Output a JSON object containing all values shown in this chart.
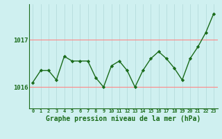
{
  "x": [
    0,
    1,
    2,
    3,
    4,
    5,
    6,
    7,
    8,
    9,
    10,
    11,
    12,
    13,
    14,
    15,
    16,
    17,
    18,
    19,
    20,
    21,
    22,
    23
  ],
  "y": [
    1016.1,
    1016.35,
    1016.35,
    1016.15,
    1016.65,
    1016.55,
    1016.55,
    1016.55,
    1016.2,
    1016.0,
    1016.45,
    1016.55,
    1016.35,
    1016.0,
    1016.35,
    1016.6,
    1016.75,
    1016.6,
    1016.4,
    1016.15,
    1016.6,
    1016.85,
    1017.15,
    1017.55
  ],
  "line_color": "#1a6b1a",
  "marker_color": "#1a6b1a",
  "bg_color": "#cff0f0",
  "grid_color_h": "#ff8888",
  "grid_color_v": "#b0d8d8",
  "xlabel": "Graphe pression niveau de la mer (hPa)",
  "xlabel_color": "#1a6b1a",
  "tick_color": "#1a6b1a",
  "yticks": [
    1016,
    1017
  ],
  "ylim": [
    1015.55,
    1017.75
  ],
  "xlim": [
    -0.5,
    23.5
  ],
  "xtick_labels": [
    "0",
    "1",
    "2",
    "3",
    "4",
    "5",
    "6",
    "7",
    "8",
    "9",
    "10",
    "11",
    "12",
    "13",
    "14",
    "15",
    "16",
    "17",
    "18",
    "19",
    "20",
    "21",
    "22",
    "23"
  ]
}
